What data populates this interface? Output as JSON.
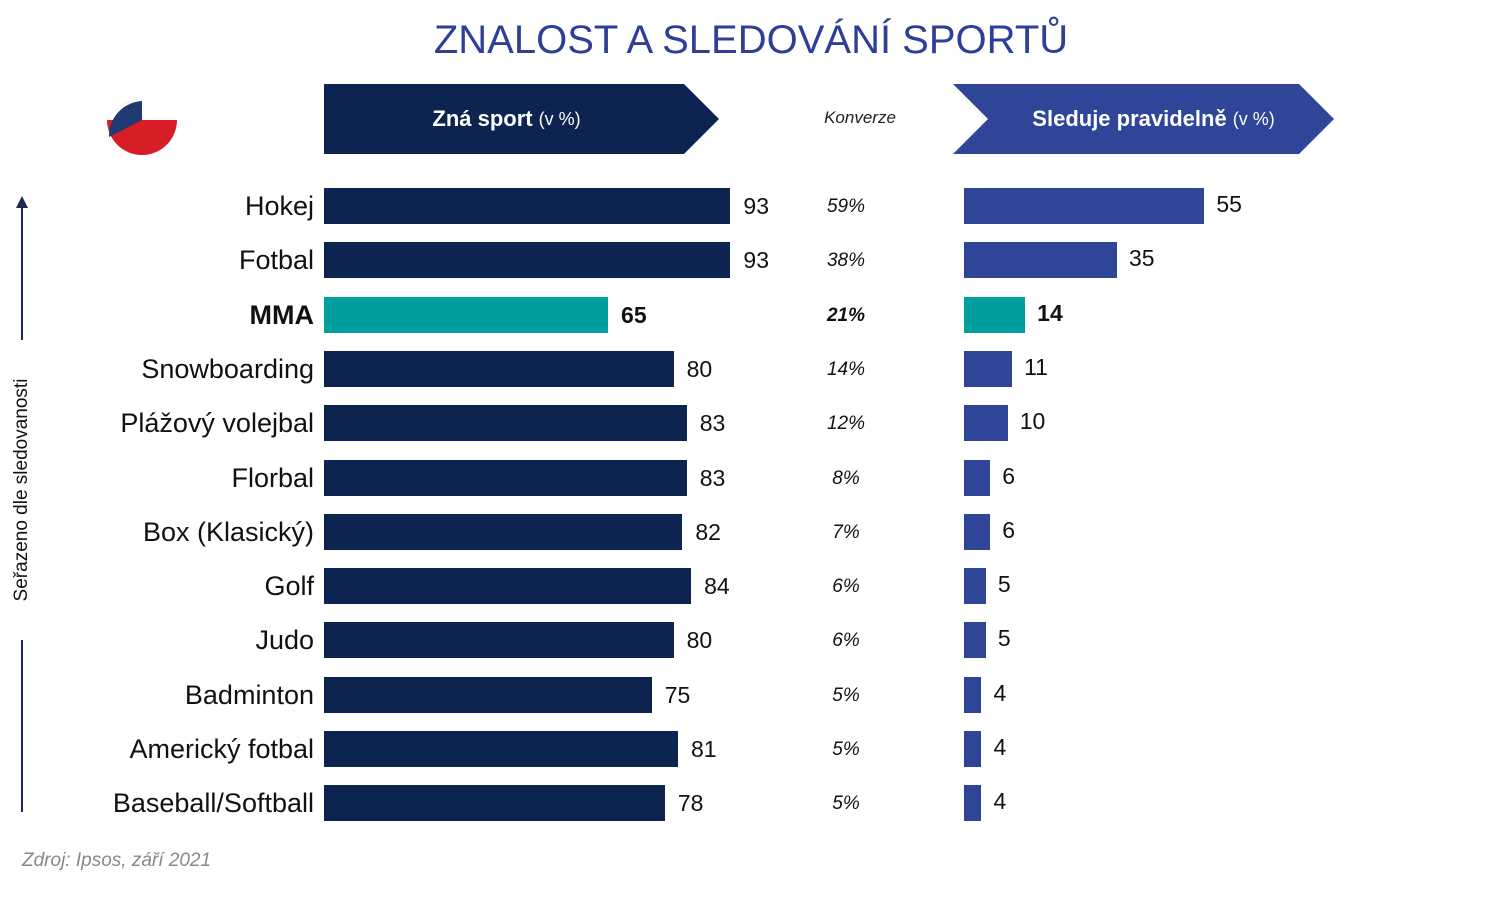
{
  "title": "ZNALOST A SLEDOVÁNÍ SPORTŮ",
  "header_left": {
    "label": "Zná sport",
    "unit": "(v %)"
  },
  "header_right": {
    "label": "Sleduje pravidelně",
    "unit": "(v %)"
  },
  "conversion_label": "Konverze",
  "axis_label": "Seřazeno dle sledovanosti",
  "source": "Zdroj: Ipsos, září 2021",
  "colors": {
    "title": "#2e3f98",
    "aware_bar": "#0d2451",
    "watch_bar": "#2e4598",
    "highlight": "#009f9c",
    "flag_blue": "#1f3a73",
    "flag_red": "#d71e26"
  },
  "chart_data": {
    "type": "bar",
    "orientation": "horizontal",
    "categories": [
      "Hokej",
      "Fotbal",
      "MMA",
      "Snowboarding",
      "Plážový volejbal",
      "Florbal",
      "Box (Klasický)",
      "Golf",
      "Judo",
      "Badminton",
      "Americký fotbal",
      "Baseball/Softball"
    ],
    "series": [
      {
        "name": "Zná sport",
        "values": [
          93,
          93,
          65,
          80,
          83,
          83,
          82,
          84,
          80,
          75,
          81,
          78
        ]
      },
      {
        "name": "Sleduje pravidelně",
        "values": [
          55,
          35,
          14,
          11,
          10,
          6,
          6,
          5,
          5,
          4,
          4,
          4
        ]
      }
    ],
    "conversion": [
      "59%",
      "38%",
      "21%",
      "14%",
      "12%",
      "8%",
      "7%",
      "6%",
      "6%",
      "5%",
      "5%",
      "5%"
    ],
    "highlight_index": 2,
    "xlim": [
      0,
      100
    ]
  }
}
